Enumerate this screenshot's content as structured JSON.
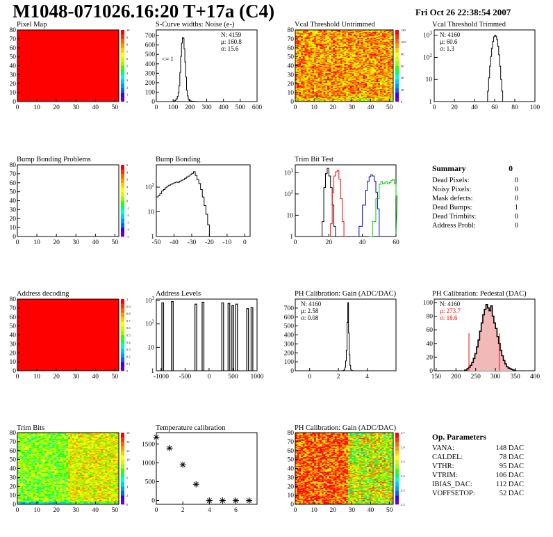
{
  "title": "M1048-071026.16:20 T+17a (C4)",
  "date": "Fri Oct 26 22:38:54 2007",
  "colors": {
    "red": "#ff0000",
    "green": "#00cc00",
    "blue": "#0000cc",
    "black": "#000000",
    "pink": "#f2b9b9"
  },
  "chart_data": [
    {
      "id": "pixel-map",
      "type": "heatmap",
      "title": "Pixel Map",
      "x_ticks": [
        "0",
        "10",
        "20",
        "30",
        "40",
        "50"
      ],
      "y_ticks": [
        "0",
        "10",
        "20",
        "30",
        "40",
        "50",
        "60",
        "70",
        "80"
      ],
      "z_ticks": [
        "0",
        "1",
        "2",
        "3",
        "4",
        "5",
        "6",
        "7",
        "8",
        "9",
        "10"
      ],
      "fill": "uniform-red"
    },
    {
      "id": "scurve",
      "type": "line",
      "title": "S-Curve widths: Noise (e-)",
      "x_ticks": [
        "0",
        "100",
        "200",
        "300",
        "400",
        "500",
        "600"
      ],
      "y_ticks": [
        "0",
        "100",
        "200",
        "300",
        "400",
        "500",
        "600",
        "700"
      ],
      "stats": [
        "N: 4159",
        "μ: 160.8",
        "σ: 15.6"
      ],
      "annotation": "<= 1",
      "xlim": [
        0,
        600
      ],
      "ylim": [
        0,
        760
      ],
      "x": [
        90,
        100,
        105,
        110,
        115,
        120,
        125,
        130,
        135,
        140,
        145,
        150,
        155,
        160,
        165,
        170,
        175,
        180,
        185,
        190,
        195,
        200,
        210,
        220,
        230,
        240,
        250,
        260
      ],
      "y": [
        0,
        4,
        6,
        10,
        18,
        30,
        55,
        95,
        170,
        310,
        480,
        620,
        680,
        670,
        560,
        420,
        260,
        120,
        60,
        25,
        12,
        6,
        4,
        2,
        1,
        1,
        0,
        0
      ]
    },
    {
      "id": "vcal-untrimmed",
      "type": "heatmap",
      "title": "Vcal Threshold Untrimmed",
      "x_ticks": [
        "0",
        "10",
        "20",
        "30",
        "40",
        "50"
      ],
      "y_ticks": [
        "0",
        "10",
        "20",
        "30",
        "40",
        "50",
        "60",
        "70",
        "80"
      ],
      "z_ticks": [
        "0",
        "20",
        "40",
        "60",
        "80",
        "100",
        "120"
      ]
    },
    {
      "id": "vcal-trimmed",
      "type": "line",
      "title": "Vcal Threshold Trimmed",
      "log_y": true,
      "x_ticks": [
        "0",
        "20",
        "40",
        "60",
        "80",
        "100"
      ],
      "stats": [
        "N: 4160",
        "μ: 60.6",
        "σ:  1.3"
      ],
      "xlim": [
        0,
        100
      ],
      "x": [
        50,
        52,
        53,
        54,
        55,
        56,
        57,
        58,
        59,
        60,
        61,
        62,
        63,
        64,
        65,
        66,
        67,
        68,
        69,
        70,
        71,
        72,
        73,
        74,
        75
      ],
      "y": [
        0,
        1,
        3,
        12,
        40,
        110,
        260,
        520,
        850,
        1000,
        900,
        640,
        320,
        130,
        40,
        10,
        3,
        1,
        0,
        0,
        0,
        0,
        1,
        1,
        0
      ]
    },
    {
      "id": "bump-problems",
      "type": "heatmap",
      "title": "Bump Bonding Problems",
      "x_ticks": [
        "0",
        "10",
        "20",
        "30",
        "40",
        "50"
      ],
      "y_ticks": [
        "0",
        "10",
        "20",
        "30",
        "40",
        "50",
        "60",
        "70",
        "80"
      ],
      "z_ticks": [
        "-5",
        "-4",
        "-3",
        "-2",
        "-1",
        "0",
        "1",
        "2",
        "3",
        "4",
        "5"
      ],
      "fill": "empty"
    },
    {
      "id": "bump-bonding",
      "type": "line",
      "title": "Bump Bonding",
      "log_y": true,
      "x_ticks": [
        "-50",
        "-40",
        "-30",
        "-20",
        "-10",
        "0"
      ],
      "xlim": [
        -50,
        3
      ],
      "x": [
        -50,
        -49,
        -48,
        -47,
        -46,
        -45,
        -44,
        -43,
        -42,
        -41,
        -40,
        -39,
        -38,
        -37,
        -36,
        -35,
        -34,
        -33,
        -32,
        -31,
        -30,
        -29,
        -28,
        -27,
        -26,
        -25,
        -24,
        -23,
        -22,
        -21,
        -20,
        -19,
        -18,
        -17,
        -16,
        -15,
        -14,
        -13,
        -12,
        -11,
        -10,
        -9,
        -8,
        -7,
        -6,
        -5,
        -4,
        -3,
        -2,
        -1,
        0,
        1,
        2
      ],
      "y": [
        40,
        45,
        55,
        70,
        80,
        95,
        110,
        120,
        130,
        140,
        150,
        160,
        155,
        175,
        190,
        200,
        230,
        260,
        280,
        320,
        360,
        420,
        300,
        200,
        140,
        80,
        40,
        18,
        8,
        3,
        1,
        0,
        0,
        0,
        0,
        0,
        0,
        0,
        0,
        0,
        0,
        0,
        0,
        0,
        0,
        0,
        0,
        0,
        0,
        0,
        1,
        0,
        0
      ]
    },
    {
      "id": "trim-bit-test",
      "type": "line",
      "title": "Trim Bit Test",
      "log_y": true,
      "x_ticks": [
        "0",
        "20",
        "40",
        "60"
      ],
      "xlim": [
        0,
        60
      ],
      "series": [
        {
          "color": "black",
          "x": [
            15,
            16,
            17,
            18,
            19,
            20,
            21,
            22,
            23,
            24
          ],
          "y": [
            0,
            5,
            200,
            900,
            1600,
            700,
            200,
            30,
            3,
            0
          ]
        },
        {
          "color": "red",
          "x": [
            20,
            21,
            22,
            23,
            24,
            25,
            26,
            27,
            28,
            29
          ],
          "y": [
            0,
            4,
            120,
            700,
            1100,
            1300,
            500,
            60,
            5,
            0
          ]
        },
        {
          "color": "blue",
          "x": [
            36,
            38,
            40,
            42,
            43,
            44,
            45,
            46,
            47,
            48,
            49,
            50
          ],
          "y": [
            0,
            3,
            30,
            150,
            400,
            650,
            800,
            700,
            400,
            120,
            20,
            0
          ]
        },
        {
          "color": "green",
          "x": [
            44,
            46,
            48,
            50,
            51,
            52,
            53,
            54,
            55,
            56,
            57,
            58,
            59,
            60
          ],
          "y": [
            0,
            5,
            60,
            280,
            380,
            300,
            330,
            380,
            300,
            350,
            420,
            500,
            300,
            80
          ]
        }
      ]
    },
    {
      "id": "address-decoding",
      "type": "heatmap",
      "title": "Address decoding",
      "x_ticks": [
        "0",
        "10",
        "20",
        "30",
        "40",
        "50"
      ],
      "y_ticks": [
        "0",
        "10",
        "20",
        "30",
        "40",
        "50",
        "60",
        "70",
        "80"
      ],
      "z_ticks": [
        "0",
        "0.1",
        "0.2",
        "0.3",
        "0.4",
        "0.5",
        "0.6",
        "0.7",
        "0.8",
        "0.9",
        "1"
      ],
      "fill": "uniform-red"
    },
    {
      "id": "address-levels",
      "type": "line",
      "title": "Address Levels",
      "log_y": true,
      "x_ticks": [
        "-1000",
        "-500",
        "0",
        "500",
        "1000"
      ],
      "xlim": [
        -1100,
        1000
      ],
      "peaks": [
        -970,
        -770,
        -280,
        -130,
        280,
        410,
        490,
        570,
        800,
        890
      ],
      "heights": [
        800,
        900,
        700,
        850,
        800,
        750,
        600,
        700,
        450,
        500
      ]
    },
    {
      "id": "ph-gain",
      "type": "line",
      "title": "PH Calibration: Gain (ADC/DAC)",
      "x_ticks": [
        "0",
        "2",
        "4"
      ],
      "y_ticks": [
        "0",
        "100",
        "200",
        "300",
        "400",
        "500",
        "600",
        "700"
      ],
      "stats": [
        "N: 4160",
        "μ: 2.58",
        "σ: 0.08"
      ],
      "xlim": [
        -1,
        6
      ],
      "ylim": [
        0,
        800
      ],
      "x": [
        2.2,
        2.3,
        2.35,
        2.4,
        2.45,
        2.5,
        2.55,
        2.6,
        2.65,
        2.7,
        2.75,
        2.8,
        2.85,
        2.9,
        3.0
      ],
      "y": [
        0,
        2,
        5,
        15,
        40,
        110,
        230,
        540,
        760,
        420,
        180,
        60,
        15,
        3,
        0
      ]
    },
    {
      "id": "ph-pedestal",
      "type": "bar",
      "title": "PH Calibration: Pedestal (DAC)",
      "x_ticks": [
        "150",
        "200",
        "250",
        "300",
        "350",
        "400"
      ],
      "y_ticks": [
        "0",
        "20",
        "40",
        "60",
        "80",
        "100"
      ],
      "stats": [
        "N: 4160",
        "μ: 273.7",
        "σ: 18.6"
      ],
      "xlim": [
        145,
        400
      ],
      "ylim": [
        0,
        105
      ],
      "x": [
        222,
        228,
        232,
        236,
        240,
        244,
        248,
        252,
        256,
        260,
        264,
        268,
        272,
        276,
        280,
        284,
        288,
        292,
        296,
        300,
        304,
        308,
        312,
        316,
        320,
        324,
        328,
        332,
        336,
        340,
        344,
        348
      ],
      "y": [
        1,
        3,
        5,
        8,
        12,
        18,
        25,
        35,
        45,
        58,
        70,
        82,
        90,
        97,
        92,
        88,
        95,
        80,
        70,
        62,
        50,
        40,
        30,
        22,
        15,
        10,
        6,
        4,
        3,
        2,
        1,
        1
      ],
      "cut_lines": [
        233,
        310
      ]
    },
    {
      "id": "trim-bits",
      "type": "heatmap",
      "title": "Trim Bits",
      "x_ticks": [
        "0",
        "10",
        "20",
        "30",
        "40",
        "50"
      ],
      "y_ticks": [
        "0",
        "10",
        "20",
        "30",
        "40",
        "50",
        "60",
        "70",
        "80"
      ],
      "z_ticks": [
        "0",
        "2",
        "4",
        "6",
        "8",
        "10",
        "12",
        "14",
        "16"
      ]
    },
    {
      "id": "temperature",
      "type": "scatter",
      "title": "Temperature calibration",
      "x_ticks": [
        "0",
        "2",
        "4",
        "6"
      ],
      "y_ticks": [
        "0",
        "500",
        "1000",
        "1500"
      ],
      "xlim": [
        0,
        7.6
      ],
      "ylim": [
        -100,
        1800
      ],
      "x": [
        0,
        1,
        2,
        3,
        4,
        5,
        6,
        7
      ],
      "y": [
        1680,
        1390,
        950,
        430,
        0,
        0,
        0,
        0
      ]
    },
    {
      "id": "ph-gain-map",
      "type": "heatmap",
      "title": "PH Calibration: Gain (ADC/DAC)",
      "x_ticks": [
        "0",
        "10",
        "20",
        "30",
        "40",
        "50"
      ],
      "y_ticks": [
        "0",
        "10",
        "20",
        "30",
        "40",
        "50",
        "60",
        "70",
        "80"
      ],
      "z_ticks": [
        "2.2",
        "2.3",
        "2.4",
        "2.5",
        "2.6",
        "2.7"
      ]
    }
  ],
  "summary": {
    "title": "Summary",
    "value": "0",
    "rows": [
      {
        "label": "Dead Pixels:",
        "value": "0"
      },
      {
        "label": "Noisy Pixels:",
        "value": "0"
      },
      {
        "label": "Mask defects:",
        "value": "0"
      },
      {
        "label": "Dead Bumps:",
        "value": "1"
      },
      {
        "label": "Dead Trimbits:",
        "value": "0"
      },
      {
        "label": "Address Probl:",
        "value": "0"
      }
    ]
  },
  "op_params": {
    "title": "Op. Parameters",
    "rows": [
      {
        "label": "VANA:",
        "value": "148 DAC"
      },
      {
        "label": "CALDEL:",
        "value": "78 DAC"
      },
      {
        "label": "VTHR:",
        "value": "95 DAC"
      },
      {
        "label": "VTRIM:",
        "value": "106 DAC"
      },
      {
        "label": "IBIAS_DAC:",
        "value": "112 DAC"
      },
      {
        "label": "VOFFSETOP:",
        "value": "52 DAC"
      }
    ]
  }
}
